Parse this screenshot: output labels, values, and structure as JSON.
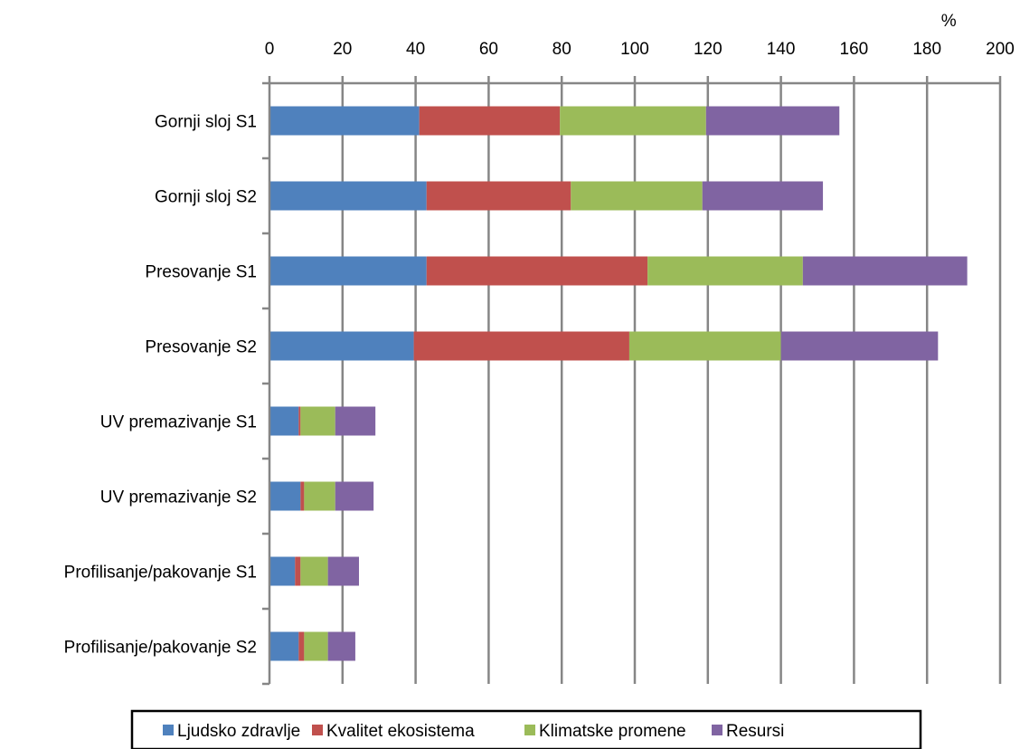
{
  "chart_data": {
    "type": "bar",
    "orientation": "horizontal",
    "stacked": true,
    "title": "",
    "xlabel": "",
    "ylabel": "",
    "unit_label": "%",
    "xlim": [
      0,
      200
    ],
    "x_ticks": [
      0,
      20,
      40,
      60,
      80,
      100,
      120,
      140,
      160,
      180,
      200
    ],
    "x_axis_position": "top",
    "grid": "vertical",
    "legend_position": "bottom",
    "categories": [
      "Gornji sloj S1",
      "Gornji sloj S2",
      "Presovanje S1",
      "Presovanje S2",
      "UV premazivanje S1",
      "UV premazivanje S2",
      "Profilisanje/pakovanje S1",
      "Profilisanje/pakovanje S2"
    ],
    "series": [
      {
        "name": "Ljudsko zdravlje",
        "color": "#4f81bd",
        "values": [
          41,
          43,
          43,
          39.5,
          8,
          8.5,
          7,
          8
        ]
      },
      {
        "name": "Kvalitet ekosistema",
        "color": "#c0504d",
        "values": [
          38.5,
          39.5,
          60.5,
          59,
          0.5,
          1,
          1.5,
          1.5
        ]
      },
      {
        "name": "Klimatske promene",
        "color": "#9bbb59",
        "values": [
          40,
          36,
          42.5,
          41.5,
          9.5,
          8.5,
          7.5,
          6.5
        ]
      },
      {
        "name": "Resursi",
        "color": "#8064a2",
        "values": [
          36.5,
          33,
          45,
          43,
          11,
          10.5,
          8.5,
          7.5
        ]
      }
    ]
  }
}
